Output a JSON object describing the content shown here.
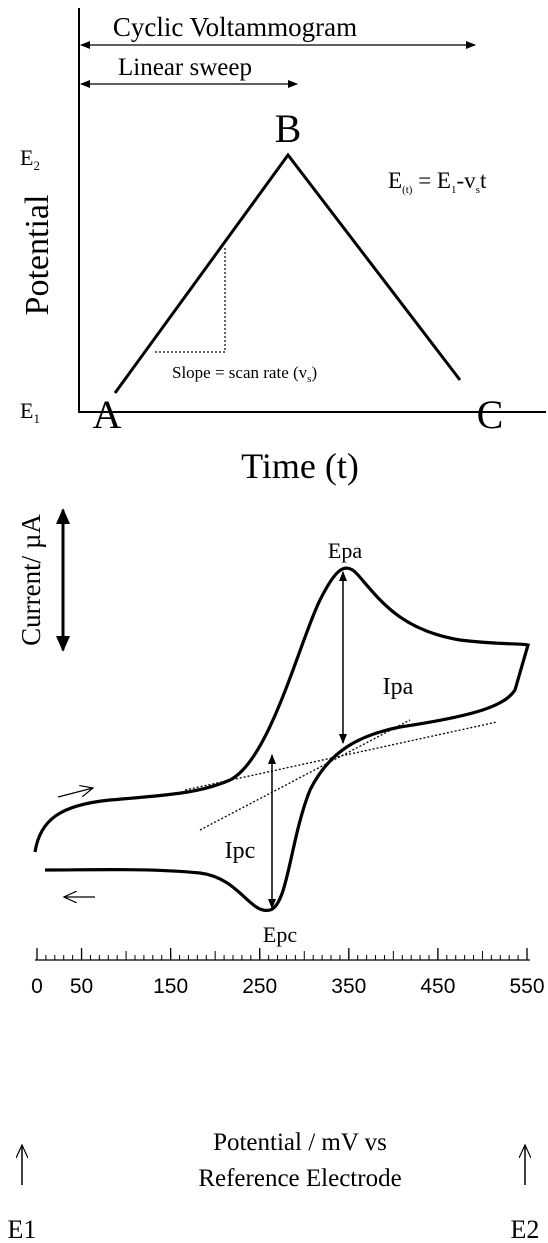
{
  "top": {
    "title": "Cyclic Voltammogram",
    "sweep": "Linear sweep",
    "y_label": "Potential",
    "x_label": "Time (t)",
    "point_a": "A",
    "point_b": "B",
    "point_c": "C",
    "e2": {
      "base": "E",
      "sub": "2"
    },
    "e1": {
      "base": "E",
      "sub": "1"
    },
    "equation": {
      "p1": "E",
      "s1": "(t)",
      "p2": " = E",
      "s2": "1",
      "p3": "-v",
      "s3": "s",
      "p4": "t"
    },
    "slope": {
      "text": "Slope = scan rate (v",
      "sub": "s",
      "end": ")"
    }
  },
  "bottom": {
    "y_label": "Current/  µA",
    "epa": "Epa",
    "epc": "Epc",
    "ipa": "Ipa",
    "ipc": "Ipc",
    "xlim": [
      0,
      550
    ],
    "xticks": [
      0,
      50,
      150,
      250,
      350,
      450,
      550
    ],
    "axis_label": [
      "Potential /  mV vs",
      "Reference Electrode"
    ],
    "e1": "E1",
    "e2": "E2"
  }
}
